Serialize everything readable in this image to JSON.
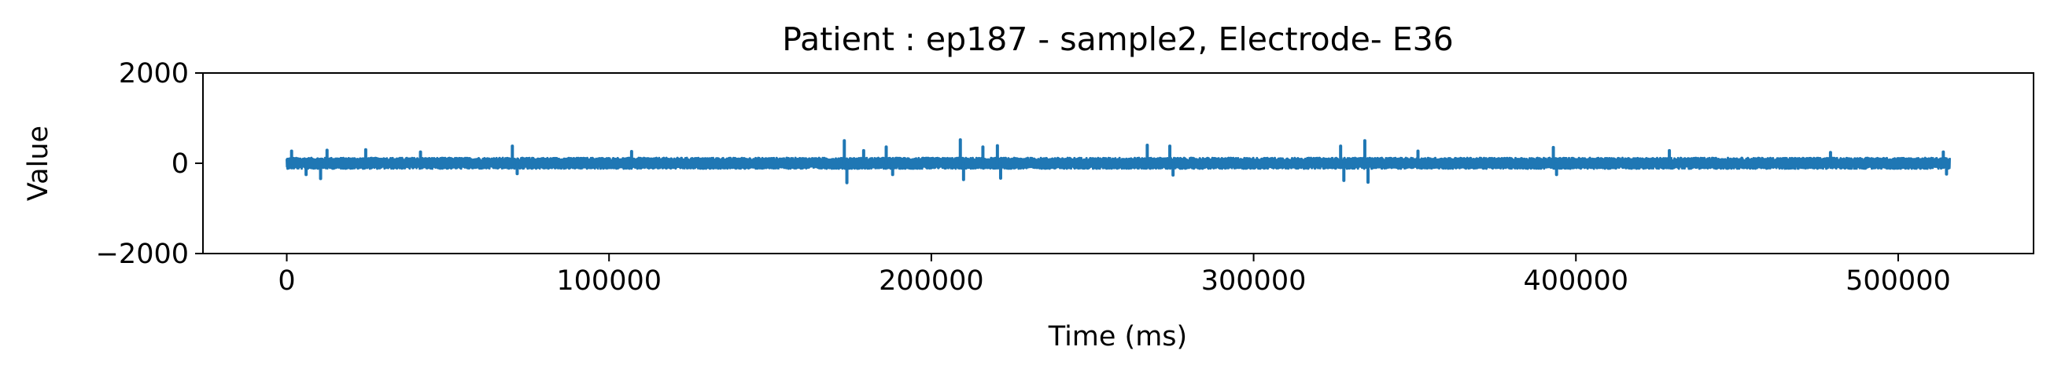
{
  "chart_data": {
    "type": "line",
    "title": "Patient : ep187 - sample2, Electrode- E36",
    "xlabel": "Time (ms)",
    "ylabel": "Value",
    "xlim": [
      -26000,
      542000
    ],
    "ylim": [
      -2000,
      2000
    ],
    "x_ticks": [
      0,
      100000,
      200000,
      300000,
      400000,
      500000
    ],
    "x_tick_labels": [
      "0",
      "100000",
      "200000",
      "300000",
      "400000",
      "500000"
    ],
    "y_ticks": [
      -2000,
      0,
      2000
    ],
    "y_tick_labels": [
      "−2000",
      "0",
      "2000"
    ],
    "grid": false,
    "series": [
      {
        "color": "#1f77b4",
        "x_start": 0,
        "x_end": 516000,
        "typical_amplitude": 120,
        "spikes": [
          {
            "x": 1500,
            "y": 270
          },
          {
            "x": 6000,
            "y": -250
          },
          {
            "x": 10500,
            "y": -340
          },
          {
            "x": 12500,
            "y": 290
          },
          {
            "x": 24500,
            "y": 300
          },
          {
            "x": 41500,
            "y": 250
          },
          {
            "x": 70000,
            "y": 380
          },
          {
            "x": 71500,
            "y": -230
          },
          {
            "x": 107000,
            "y": 260
          },
          {
            "x": 173000,
            "y": 500
          },
          {
            "x": 173800,
            "y": -430
          },
          {
            "x": 179000,
            "y": 280
          },
          {
            "x": 186000,
            "y": 360
          },
          {
            "x": 188000,
            "y": -250
          },
          {
            "x": 209000,
            "y": 520
          },
          {
            "x": 210000,
            "y": -360
          },
          {
            "x": 216000,
            "y": 360
          },
          {
            "x": 220500,
            "y": 390
          },
          {
            "x": 221500,
            "y": -330
          },
          {
            "x": 267000,
            "y": 400
          },
          {
            "x": 274000,
            "y": 380
          },
          {
            "x": 275000,
            "y": -260
          },
          {
            "x": 327000,
            "y": 380
          },
          {
            "x": 328000,
            "y": -380
          },
          {
            "x": 334500,
            "y": 500
          },
          {
            "x": 335500,
            "y": -420
          },
          {
            "x": 351000,
            "y": 270
          },
          {
            "x": 393000,
            "y": 350
          },
          {
            "x": 394000,
            "y": -250
          },
          {
            "x": 429000,
            "y": 280
          },
          {
            "x": 479000,
            "y": 240
          },
          {
            "x": 514000,
            "y": 250
          },
          {
            "x": 515000,
            "y": -240
          }
        ]
      }
    ]
  }
}
